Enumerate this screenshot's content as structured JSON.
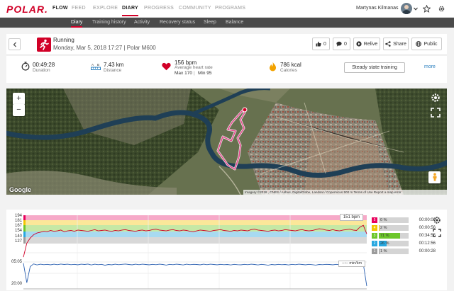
{
  "nav": {
    "logo": "POLAR.",
    "items": [
      "FLOW",
      "FEED",
      "EXPLORE",
      "DIARY",
      "PROGRESS",
      "COMMUNITY",
      "PROGRAMS"
    ],
    "user_name": "Martynas Kilmanas"
  },
  "subnav": [
    "Diary",
    "Training history",
    "Activity",
    "Recovery status",
    "Sleep",
    "Balance"
  ],
  "session": {
    "sport": "Running",
    "date_device": "Monday, Mar 5, 2018 17:27 | Polar M600"
  },
  "actions": {
    "likes": "0",
    "comments": "0",
    "relive": "Relive",
    "share": "Share",
    "visibility": "Public"
  },
  "stats": {
    "duration_value": "00:49:28",
    "duration_label": "Duration",
    "distance_value": "7.43 km",
    "distance_label": "Distance",
    "hr_value": "156 bpm",
    "hr_label": "Average heart rate",
    "hr_max": "Max 170",
    "hr_min": "Min 95",
    "calories_value": "786 kcal",
    "calories_label": "Calories",
    "training_type": "Steady state training",
    "more": "more"
  },
  "map": {
    "zoom_in": "+",
    "zoom_out": "−",
    "brand": "Google",
    "attribution": "Imagery ©2018 , CNES / Airbus, DigitalGlobe, Landsat / Copernicus   500 m   Terms of Use   Report a map error"
  },
  "chart_data": {
    "type": "line",
    "hr": {
      "y_ticks": [
        "194",
        "181",
        "167",
        "154",
        "140",
        "127"
      ],
      "legend": "151 bpm",
      "values": [
        95,
        128,
        140,
        148,
        152,
        154,
        156,
        155,
        158,
        156,
        157,
        159,
        155,
        157,
        158,
        156,
        159,
        158,
        157,
        156,
        158,
        160,
        157,
        158,
        159,
        157,
        156,
        158,
        157,
        159,
        160,
        158,
        157,
        156,
        158,
        159,
        157,
        158,
        160,
        161,
        159,
        158,
        157,
        159,
        160,
        158,
        157,
        159,
        158,
        156,
        155,
        157,
        159,
        158,
        157,
        156,
        158,
        159,
        160,
        158,
        157,
        156,
        158,
        157,
        159,
        158,
        157,
        160,
        161,
        159,
        158,
        157,
        156,
        158,
        159,
        157,
        158,
        160,
        159,
        158,
        157,
        159,
        160,
        158,
        157,
        158,
        160,
        162,
        161,
        159,
        158,
        160,
        158,
        157,
        159,
        160,
        161,
        159,
        158,
        166,
        170,
        150
      ]
    },
    "speed": {
      "y_ticks": [
        "05:05",
        "20:00"
      ],
      "legend": "--:-- min/km",
      "values": [
        5.0,
        17.8,
        7.2,
        5.4,
        6.1,
        5.6,
        5.9,
        5.7,
        6.0,
        5.6,
        5.9,
        5.5,
        5.8,
        5.6,
        5.9,
        5.7,
        6.0,
        5.6,
        5.8,
        5.5,
        6.1,
        5.6,
        5.9,
        5.7,
        6.3,
        5.8,
        6.0,
        5.6,
        5.9,
        5.7,
        5.5,
        5.8,
        6.0,
        5.6,
        5.9,
        5.6,
        5.8,
        6.0,
        5.7,
        5.9,
        5.6,
        5.8,
        6.2,
        5.7,
        5.9,
        5.6,
        5.8,
        6.1,
        5.6,
        5.9,
        5.7,
        5.8,
        6.0,
        5.6,
        5.9,
        5.6,
        5.8,
        6.0,
        5.7,
        5.9,
        5.8,
        6.1,
        5.7,
        5.9,
        6.0,
        5.7,
        5.9,
        5.6,
        5.8,
        6.1,
        5.7,
        5.9,
        6.3,
        5.8,
        6.0,
        5.7,
        5.9,
        5.8,
        6.1,
        5.7,
        5.9,
        5.6,
        5.8,
        6.0,
        5.7,
        5.9,
        6.2,
        5.8,
        5.9,
        5.7,
        5.8,
        6.0,
        5.7,
        5.9,
        5.8,
        6.0,
        5.7,
        5.9,
        6.1,
        5.8,
        5.6,
        20.0
      ]
    },
    "zones": [
      {
        "zone": "5",
        "pct": "0 %",
        "frac": 0.0,
        "time": "00:00:00",
        "color": "#e8005b"
      },
      {
        "zone": "4",
        "pct": "2 %",
        "frac": 0.02,
        "time": "00:00:56",
        "color": "#f2c500"
      },
      {
        "zone": "3",
        "pct": "71 %",
        "frac": 0.71,
        "time": "00:34:55",
        "color": "#6cc62a"
      },
      {
        "zone": "2",
        "pct": "26 %",
        "frac": 0.26,
        "time": "00:12:56",
        "color": "#28a8e0"
      },
      {
        "zone": "1",
        "pct": "1 %",
        "frac": 0.01,
        "time": "00:00:28",
        "color": "#9b9b9b"
      }
    ]
  }
}
